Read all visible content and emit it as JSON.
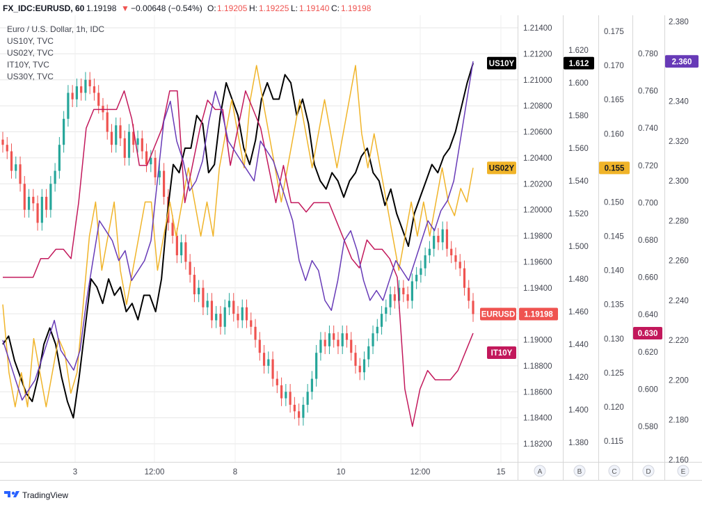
{
  "header": {
    "symbol": "FX_IDC:EURUSD, 60",
    "last": "1.19198",
    "change": "−0.00648 (−0.54%)",
    "o_label": "O:",
    "o_value": "1.19205",
    "h_label": "H:",
    "h_value": "1.19225",
    "l_label": "L:",
    "l_value": "1.19140",
    "c_label": "C:",
    "c_value": "1.19198"
  },
  "legend": [
    "Euro / U.S. Dollar, 1h, IDC",
    "US10Y, TVC",
    "US02Y, TVC",
    "IT10Y, TVC",
    "US30Y, TVC"
  ],
  "branding": "TradingView",
  "colors": {
    "up": "#26a69a",
    "down": "#ef5350",
    "us10y": "#000000",
    "us02y": "#f0b429",
    "it10y": "#c2185b",
    "us30y": "#673ab7",
    "eurusd_label": "#ef5350",
    "grid": "#e6e6e6"
  },
  "chart_data": {
    "type": "line",
    "xlabels": [
      "3",
      "12:00",
      "8",
      "10",
      "12:00",
      "15"
    ],
    "axes": [
      {
        "id": "eurusd",
        "ticks": [
          "1.21400",
          "1.21200",
          "1.21000",
          "1.20800",
          "1.20600",
          "1.20400",
          "1.20200",
          "1.20000",
          "1.19800",
          "1.19600",
          "1.19400",
          "1.19200",
          "1.19000",
          "1.18800",
          "1.18600",
          "1.18400",
          "1.18200"
        ]
      },
      {
        "id": "A",
        "button": "A",
        "ticks": [
          "1.620",
          "1.600",
          "1.580",
          "1.560",
          "1.540",
          "1.520",
          "1.500",
          "1.480",
          "1.460",
          "1.440",
          "1.420",
          "1.400",
          "1.380"
        ]
      },
      {
        "id": "B",
        "button": "B",
        "ticks": [
          "0.175",
          "0.170",
          "0.165",
          "0.160",
          "0.155",
          "0.150",
          "0.145",
          "0.140",
          "0.135",
          "0.130",
          "0.125",
          "0.120",
          "0.115"
        ]
      },
      {
        "id": "C",
        "button": "C",
        "ticks": [
          "0.780",
          "0.760",
          "0.740",
          "0.720",
          "0.700",
          "0.680",
          "0.660",
          "0.640",
          "0.620",
          "0.600",
          "0.580"
        ]
      },
      {
        "id": "D",
        "button": "D",
        "ticks": [
          "2.380",
          "2.360",
          "2.340",
          "2.320",
          "2.300",
          "2.280",
          "2.260",
          "2.240",
          "2.220",
          "2.200",
          "2.180",
          "2.160"
        ]
      },
      {
        "id": "E",
        "button": "E",
        "ticks": []
      }
    ],
    "series": [
      {
        "name": "EURUSD",
        "type": "candlestick",
        "axis": "eurusd",
        "last_label": "1.19198",
        "close": [
          1.205,
          1.2045,
          1.203,
          1.2035,
          1.202,
          1.2,
          1.201,
          1.2005,
          1.199,
          1.201,
          1.2,
          1.202,
          1.203,
          1.205,
          1.207,
          1.209,
          1.2085,
          1.2095,
          1.209,
          1.21,
          1.2095,
          1.209,
          1.208,
          1.2075,
          1.206,
          1.205,
          1.2065,
          1.2055,
          1.204,
          1.206,
          1.205,
          1.2055,
          1.2045,
          1.2035,
          1.204,
          1.2025,
          1.203,
          1.201,
          1.199,
          1.198,
          1.1965,
          1.1975,
          1.196,
          1.195,
          1.1935,
          1.194,
          1.1925,
          1.193,
          1.1915,
          1.192,
          1.191,
          1.1925,
          1.193,
          1.192,
          1.1915,
          1.1925,
          1.1915,
          1.191,
          1.19,
          1.189,
          1.188,
          1.1885,
          1.187,
          1.1865,
          1.1855,
          1.186,
          1.185,
          1.1845,
          1.184,
          1.185,
          1.186,
          1.187,
          1.189,
          1.19,
          1.1895,
          1.1905,
          1.19,
          1.1895,
          1.1905,
          1.19,
          1.189,
          1.188,
          1.1875,
          1.1885,
          1.1895,
          1.1905,
          1.191,
          1.192,
          1.1925,
          1.1935,
          1.193,
          1.194,
          1.1935,
          1.193,
          1.1945,
          1.195,
          1.1955,
          1.1965,
          1.197,
          1.198,
          1.1975,
          1.1985,
          1.197,
          1.1965,
          1.196,
          1.1955,
          1.194,
          1.193,
          1.19198
        ]
      },
      {
        "name": "US10Y",
        "axis": "A",
        "last_label": "1.612",
        "values": [
          1.44,
          1.445,
          1.43,
          1.42,
          1.41,
          1.405,
          1.42,
          1.44,
          1.45,
          1.44,
          1.42,
          1.405,
          1.395,
          1.42,
          1.45,
          1.48,
          1.475,
          1.465,
          1.48,
          1.47,
          1.475,
          1.46,
          1.465,
          1.455,
          1.47,
          1.47,
          1.46,
          1.48,
          1.52,
          1.55,
          1.545,
          1.56,
          1.56,
          1.58,
          1.575,
          1.545,
          1.55,
          1.58,
          1.6,
          1.59,
          1.58,
          1.56,
          1.55,
          1.565,
          1.59,
          1.6,
          1.59,
          1.59,
          1.605,
          1.6,
          1.58,
          1.59,
          1.575,
          1.55,
          1.54,
          1.535,
          1.545,
          1.54,
          1.53,
          1.54,
          1.545,
          1.555,
          1.56,
          1.545,
          1.54,
          1.525,
          1.535,
          1.52,
          1.51,
          1.5,
          1.52,
          1.53,
          1.54,
          1.55,
          1.545,
          1.555,
          1.56,
          1.57,
          1.585,
          1.6,
          1.612
        ]
      },
      {
        "name": "US02Y",
        "axis": "B",
        "last_label": "0.155",
        "values": [
          0.135,
          0.125,
          0.12,
          0.125,
          0.12,
          0.13,
          0.125,
          0.12,
          0.125,
          0.13,
          0.128,
          0.122,
          0.125,
          0.135,
          0.145,
          0.15,
          0.14,
          0.145,
          0.15,
          0.14,
          0.135,
          0.14,
          0.145,
          0.15,
          0.15,
          0.14,
          0.145,
          0.15,
          0.145,
          0.15,
          0.155,
          0.15,
          0.145,
          0.15,
          0.145,
          0.155,
          0.16,
          0.165,
          0.16,
          0.155,
          0.165,
          0.17,
          0.165,
          0.16,
          0.155,
          0.15,
          0.155,
          0.16,
          0.165,
          0.16,
          0.155,
          0.16,
          0.165,
          0.16,
          0.155,
          0.16,
          0.165,
          0.17,
          0.16,
          0.155,
          0.16,
          0.155,
          0.15,
          0.145,
          0.14,
          0.145,
          0.15,
          0.145,
          0.15,
          0.145,
          0.15,
          0.155,
          0.15,
          0.148,
          0.152,
          0.15,
          0.155
        ]
      },
      {
        "name": "IT10Y",
        "axis": "C",
        "last_label": "0.630",
        "values": [
          0.66,
          0.66,
          0.66,
          0.66,
          0.66,
          0.67,
          0.67,
          0.675,
          0.675,
          0.67,
          0.7,
          0.74,
          0.75,
          0.75,
          0.75,
          0.75,
          0.76,
          0.745,
          0.72,
          0.72,
          0.73,
          0.74,
          0.76,
          0.76,
          0.7,
          0.72,
          0.74,
          0.755,
          0.75,
          0.75,
          0.72,
          0.74,
          0.76,
          0.75,
          0.74,
          0.72,
          0.7,
          0.72,
          0.7,
          0.7,
          0.695,
          0.7,
          0.7,
          0.7,
          0.69,
          0.68,
          0.67,
          0.665,
          0.68,
          0.675,
          0.675,
          0.67,
          0.66,
          0.6,
          0.58,
          0.6,
          0.61,
          0.605,
          0.605,
          0.605,
          0.61,
          0.62,
          0.63
        ]
      },
      {
        "name": "US30Y",
        "axis": "D",
        "last_label": "2.360",
        "values": [
          2.22,
          2.21,
          2.2,
          2.19,
          2.195,
          2.2,
          2.21,
          2.22,
          2.23,
          2.215,
          2.21,
          2.205,
          2.215,
          2.24,
          2.26,
          2.28,
          2.275,
          2.27,
          2.26,
          2.265,
          2.25,
          2.255,
          2.26,
          2.27,
          2.3,
          2.33,
          2.34,
          2.32,
          2.31,
          2.295,
          2.3,
          2.31,
          2.33,
          2.345,
          2.335,
          2.32,
          2.315,
          2.31,
          2.305,
          2.3,
          2.32,
          2.315,
          2.31,
          2.3,
          2.29,
          2.28,
          2.26,
          2.25,
          2.26,
          2.255,
          2.24,
          2.235,
          2.25,
          2.27,
          2.275,
          2.265,
          2.25,
          2.24,
          2.245,
          2.24,
          2.25,
          2.26,
          2.255,
          2.25,
          2.26,
          2.27,
          2.28,
          2.275,
          2.285,
          2.29,
          2.3,
          2.32,
          2.34,
          2.36
        ]
      }
    ]
  }
}
